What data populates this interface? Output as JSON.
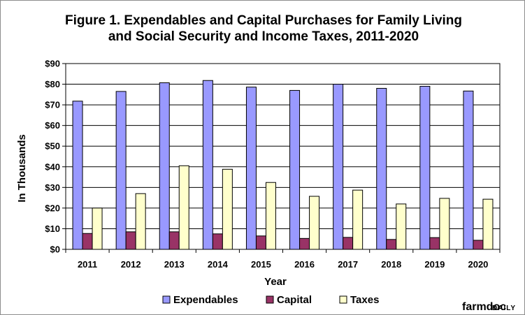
{
  "chart_data": {
    "type": "bar",
    "title": [
      "Figure 1. Expendables and Capital Purchases for Family Living",
      "and Social Security and Income Taxes, 2011-2020"
    ],
    "xlabel": "Year",
    "ylabel": "In Thousands",
    "ylim": [
      0,
      90
    ],
    "y_ticks": [
      0,
      10,
      20,
      30,
      40,
      50,
      60,
      70,
      80,
      90
    ],
    "y_tick_labels": [
      "$0",
      "$10",
      "$20",
      "$30",
      "$40",
      "$50",
      "$60",
      "$70",
      "$80",
      "$90"
    ],
    "grid": true,
    "legend_position": "bottom",
    "categories": [
      "2011",
      "2012",
      "2013",
      "2014",
      "2015",
      "2016",
      "2017",
      "2018",
      "2019",
      "2020"
    ],
    "series": [
      {
        "name": "Expendables",
        "color": "#9999ff",
        "values": [
          71.8,
          76.5,
          80.7,
          81.8,
          78.6,
          77.0,
          80.0,
          78.0,
          79.0,
          76.7
        ]
      },
      {
        "name": "Capital",
        "color": "#993366",
        "values": [
          7.7,
          8.5,
          8.5,
          7.5,
          6.5,
          5.3,
          5.8,
          4.8,
          5.7,
          4.4
        ]
      },
      {
        "name": "Taxes",
        "color": "#ffffcc",
        "values": [
          20.0,
          27.0,
          40.5,
          38.8,
          32.4,
          25.7,
          28.7,
          22.0,
          24.7,
          24.3
        ]
      }
    ]
  },
  "branding": {
    "logo_main": "farmdoc",
    "logo_sub": "DAILY"
  }
}
